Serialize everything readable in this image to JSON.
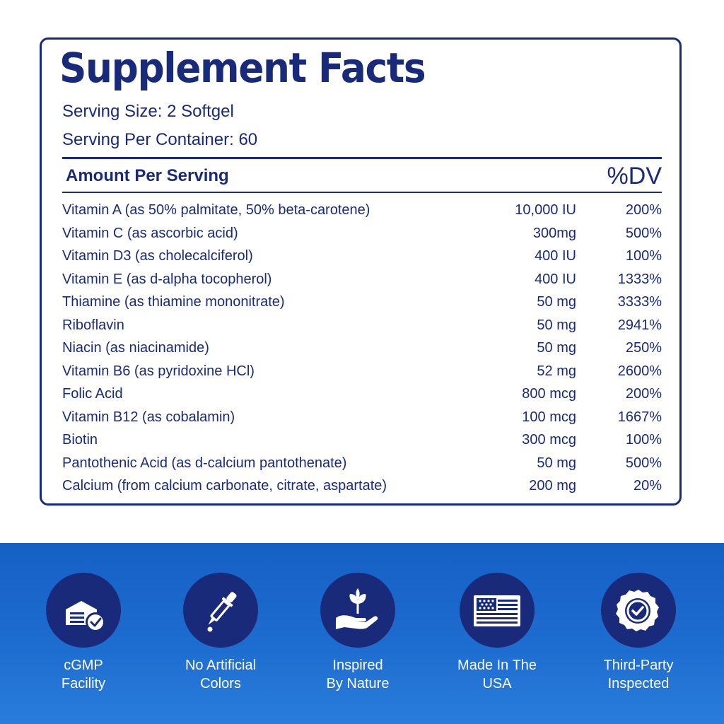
{
  "facts": {
    "title": "Supplement Facts",
    "serving_size": "Serving Size: 2 Softgel",
    "servings_per_container": "Serving Per Container: 60",
    "header_amount": "Amount Per Serving",
    "header_dv": "%DV",
    "rows": [
      {
        "name": "Vitamin A (as 50% palmitate, 50% beta-carotene)",
        "amount": "10,000 IU",
        "dv": "200%"
      },
      {
        "name": "Vitamin C (as ascorbic acid)",
        "amount": "300mg",
        "dv": "500%"
      },
      {
        "name": "Vitamin D3 (as cholecalciferol)",
        "amount": "400 IU",
        "dv": "100%"
      },
      {
        "name": "Vitamin E (as d-alpha tocopherol)",
        "amount": "400 IU",
        "dv": "1333%"
      },
      {
        "name": "Thiamine (as thiamine mononitrate)",
        "amount": "50 mg",
        "dv": "3333%"
      },
      {
        "name": "Riboflavin",
        "amount": "50 mg",
        "dv": "2941%"
      },
      {
        "name": "Niacin (as niacinamide)",
        "amount": "50 mg",
        "dv": "250%"
      },
      {
        "name": "Vitamin B6 (as pyridoxine HCl)",
        "amount": "52 mg",
        "dv": "2600%"
      },
      {
        "name": "Folic Acid",
        "amount": "800 mcg",
        "dv": "200%"
      },
      {
        "name": "Vitamin B12 (as cobalamin)",
        "amount": "100 mcg",
        "dv": "1667%"
      },
      {
        "name": "Biotin",
        "amount": "300 mcg",
        "dv": "100%"
      },
      {
        "name": "Pantothenic Acid (as d-calcium pantothenate)",
        "amount": "50 mg",
        "dv": "500%"
      },
      {
        "name": "Calcium (from calcium carbonate, citrate, aspartate)",
        "amount": "200 mg",
        "dv": "20%"
      }
    ]
  },
  "colors": {
    "navy": "#1a2a7a",
    "band_blue": "#1d6cd0",
    "white": "#ffffff"
  },
  "badges": [
    {
      "icon": "factory-check-icon",
      "line1": "cGMP",
      "line2": "Facility"
    },
    {
      "icon": "dropper-icon",
      "line1": "No Artificial",
      "line2": "Colors"
    },
    {
      "icon": "plant-hand-icon",
      "line1": "Inspired",
      "line2": "By Nature"
    },
    {
      "icon": "usa-flag-icon",
      "line1": "Made In The",
      "line2": "USA"
    },
    {
      "icon": "seal-check-icon",
      "line1": "Third-Party",
      "line2": "Inspected"
    }
  ]
}
